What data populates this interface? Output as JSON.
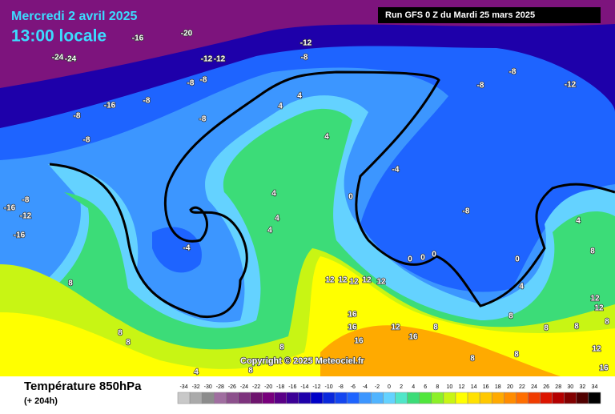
{
  "header": {
    "date": "Mercredi 2 avril 2025",
    "time": "13:00 locale",
    "run": "Run GFS 0 Z du Mardi 25 mars 2025"
  },
  "copyright": "Copyright © 2025 Meteociel.fr",
  "footer": {
    "title": "Température 850hPa",
    "lead": "(+ 204h)"
  },
  "legend": {
    "labels": [
      -34,
      -32,
      -30,
      -28,
      -26,
      -24,
      -22,
      -20,
      -18,
      -16,
      -14,
      -12,
      -10,
      -8,
      -6,
      -4,
      -2,
      0,
      2,
      4,
      6,
      8,
      10,
      12,
      14,
      16,
      18,
      20,
      22,
      24,
      26,
      28,
      30,
      32,
      34
    ],
    "colors": [
      "#c8c8c8",
      "#aaaaaa",
      "#8c8c8c",
      "#a06ea0",
      "#8c508c",
      "#7d327d",
      "#6e146e",
      "#78007d",
      "#5a0087",
      "#3c0096",
      "#1e00aa",
      "#0000c8",
      "#0a28dc",
      "#1446f0",
      "#1e64ff",
      "#3c96ff",
      "#50b4ff",
      "#64d2ff",
      "#50e6c8",
      "#3cdc78",
      "#50e63c",
      "#8cf028",
      "#c8f514",
      "#ffff00",
      "#ffe100",
      "#ffc800",
      "#ffaa00",
      "#ff8c00",
      "#ff6e00",
      "#f03c00",
      "#dc1400",
      "#b40000",
      "#820000",
      "#500000",
      "#000000"
    ]
  },
  "contour_labels": [
    -24,
    -24,
    -16,
    -20,
    -12,
    -12,
    -12,
    -8,
    -8,
    -8,
    -16,
    -8,
    -8,
    -8,
    -8,
    4,
    4,
    4,
    4,
    4,
    4,
    -4,
    -4,
    0,
    -8,
    -8,
    -8,
    -12,
    -8,
    -16,
    -12,
    -16,
    8,
    8,
    8,
    4,
    8,
    8,
    12,
    12,
    12,
    12,
    12,
    16,
    16,
    16,
    12,
    16,
    8,
    0,
    0,
    0,
    0,
    4,
    4,
    8,
    12,
    12,
    8,
    8,
    8,
    12,
    16,
    8,
    8,
    8
  ]
}
